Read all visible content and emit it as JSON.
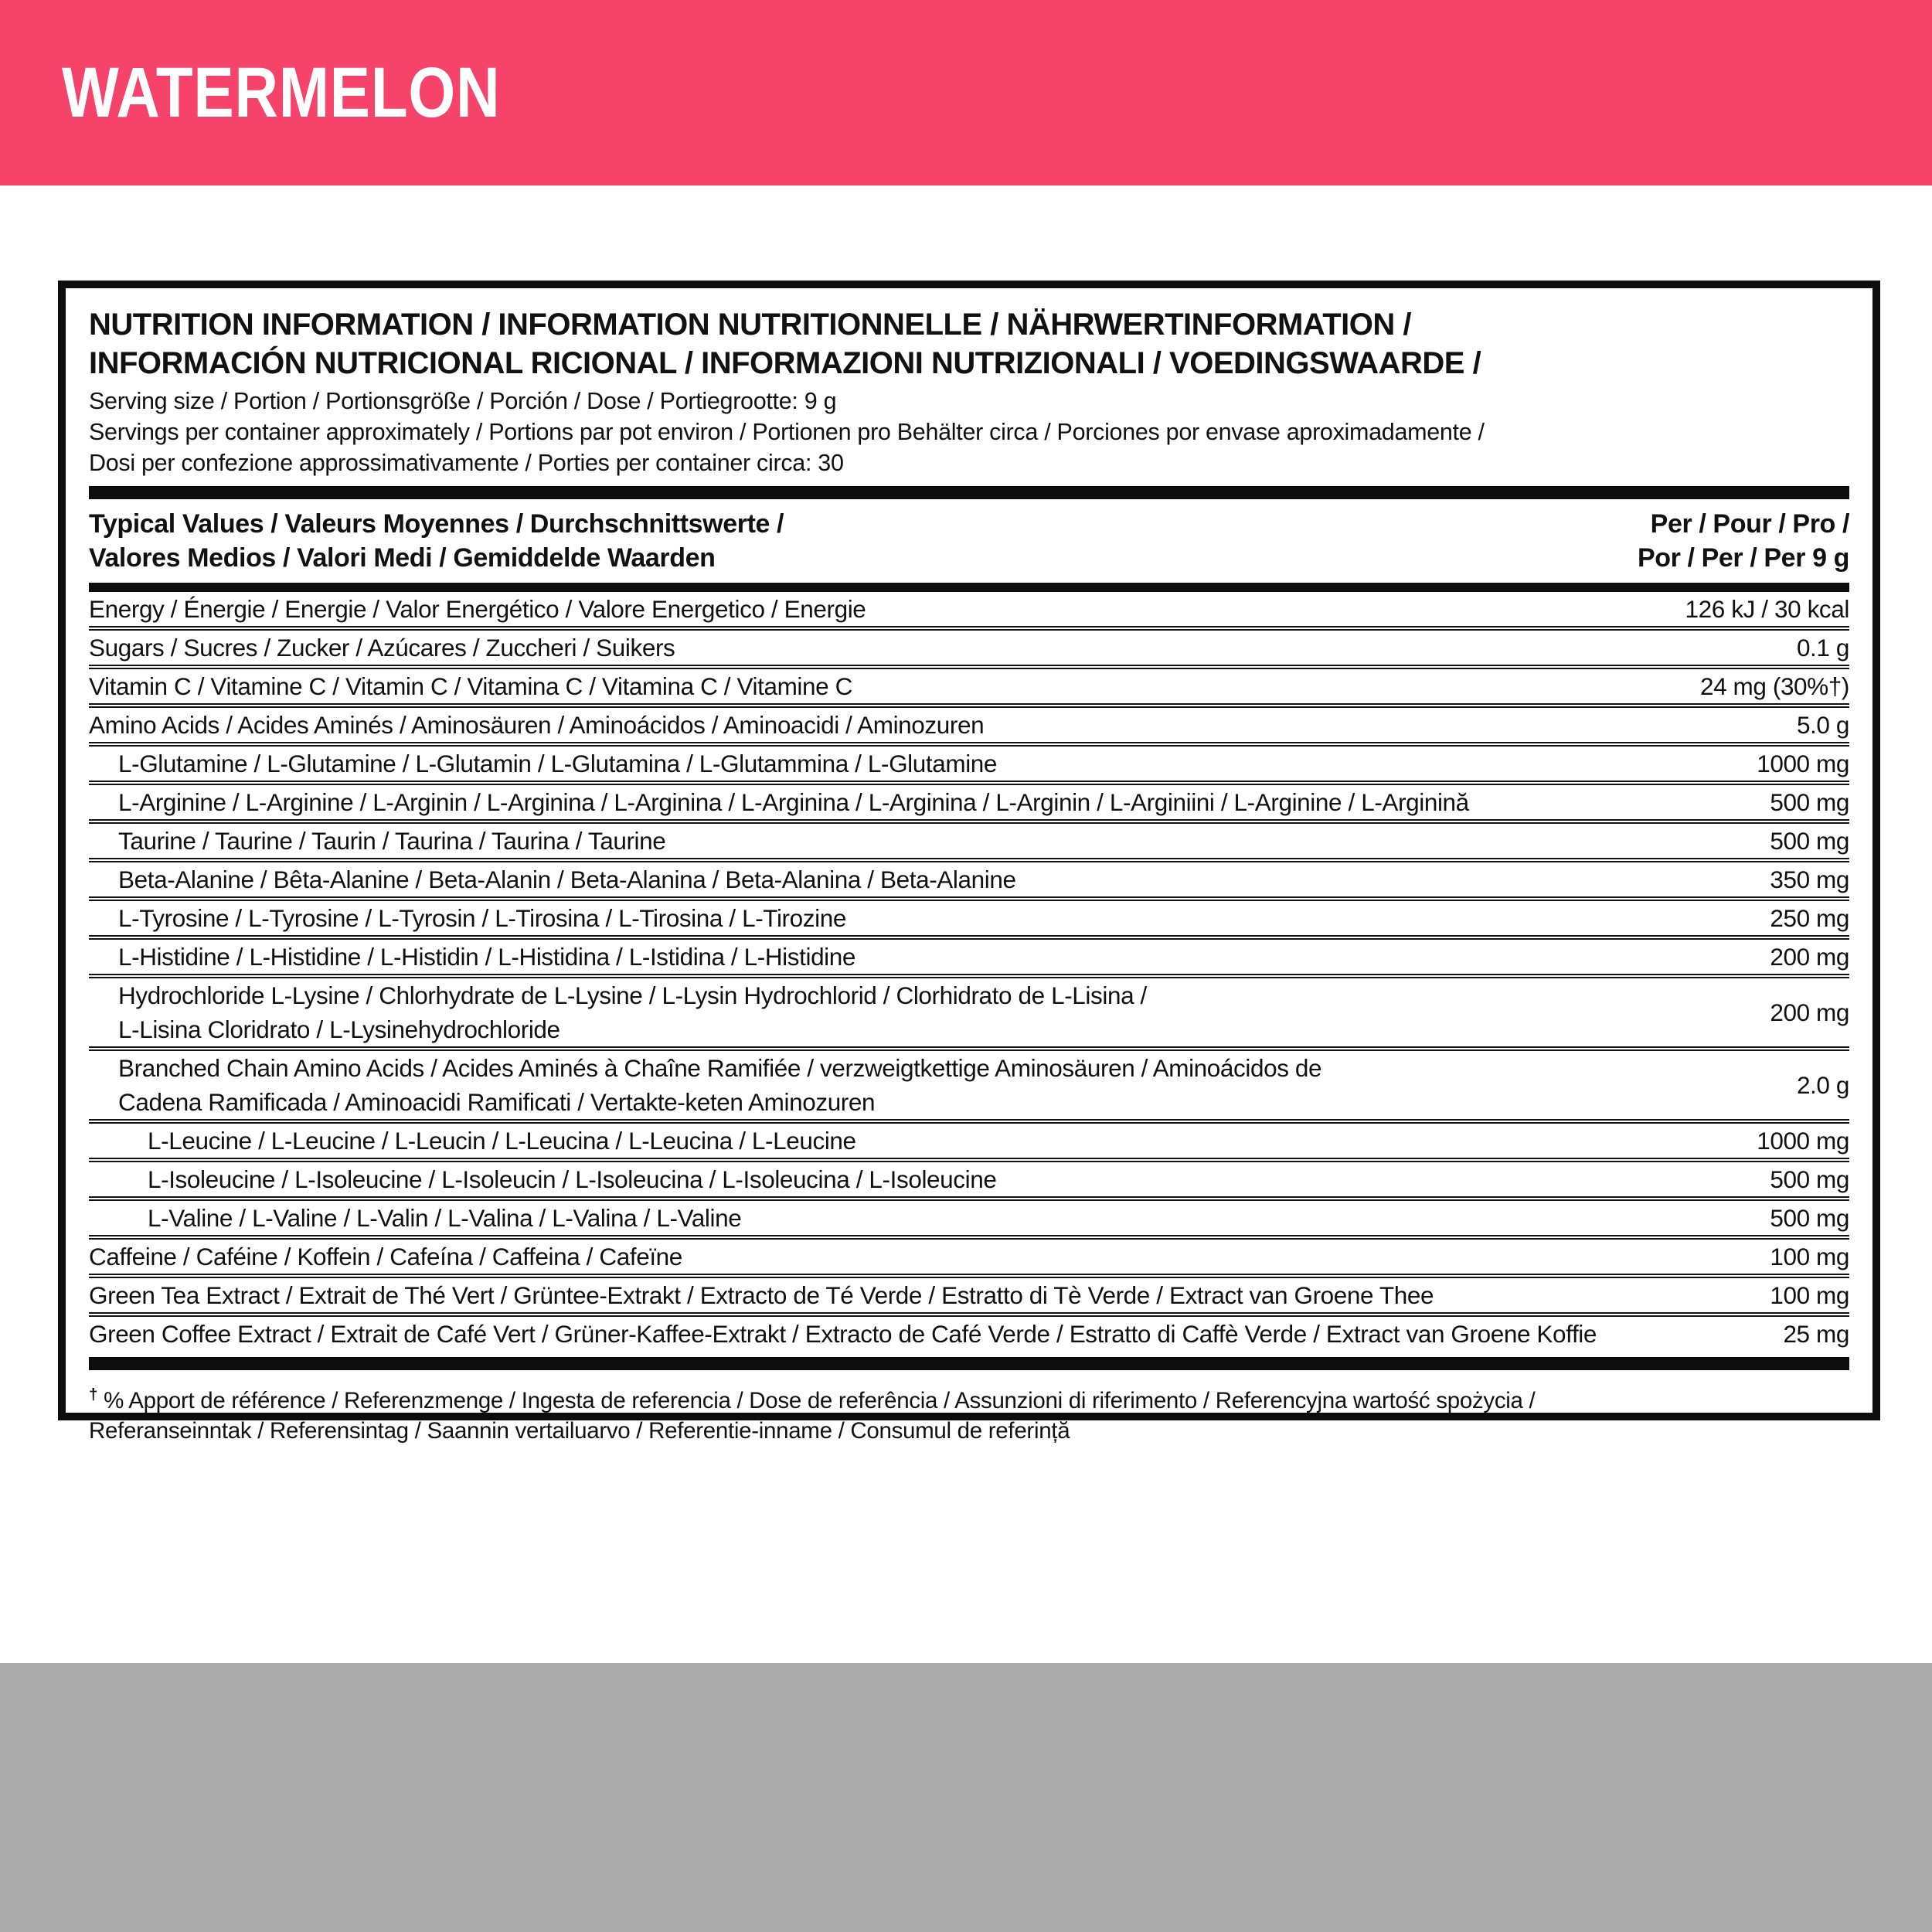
{
  "colors": {
    "banner_pink": "#F5436A",
    "footer_gray": "#ABABAB",
    "ink": "#111111"
  },
  "banner": {
    "flavor": "WATERMELON"
  },
  "panel": {
    "title_line1": "NUTRITION INFORMATION / INFORMATION NUTRITIONNELLE / NÄHRWERTINFORMATION /",
    "title_line2": "INFORMACIÓN NUTRICIONAL RICIONAL / INFORMAZIONI NUTRIZIONALI / VOEDINGSWAARDE /",
    "serving_lines": [
      "Serving size / Portion / Portionsgröße / Porción / Dose / Portiegrootte: 9 g",
      "Servings per container approximately / Portions par pot environ / Portionen pro Behälter circa / Porciones por envase aproximadamente /",
      "Dosi per confezione approssimativamente / Porties per container circa: 30"
    ],
    "columns": {
      "typical_line1": "Typical Values / Valeurs Moyennes / Durchschnittswerte /",
      "typical_line2": "Valores Medios / Valori Medi / Gemiddelde Waarden",
      "per_line1": "Per / Pour / Pro /",
      "per_line2": "Por / Per / Per 9 g"
    },
    "rows": [
      {
        "indent": 0,
        "label": "Energy / Énergie / Energie / Valor Energético / Valore Energetico / Energie",
        "value": "126 kJ / 30 kcal"
      },
      {
        "indent": 0,
        "label": "Sugars / Sucres / Zucker / Azúcares / Zuccheri / Suikers",
        "value": "0.1 g"
      },
      {
        "indent": 0,
        "label": "Vitamin C / Vitamine C / Vitamin C / Vitamina C / Vitamina C / Vitamine C",
        "value": "24 mg (30%†)"
      },
      {
        "indent": 0,
        "label": "Amino Acids / Acides Aminés / Aminosäuren / Aminoácidos / Aminoacidi / Aminozuren",
        "value": "5.0 g"
      },
      {
        "indent": 1,
        "label": "L-Glutamine / L-Glutamine / L-Glutamin / L-Glutamina / L-Glutammina / L-Glutamine",
        "value": "1000 mg"
      },
      {
        "indent": 1,
        "label": "L-Arginine / L-Arginine / L-Arginin / L-Arginina / L-Arginina / L-Arginina / L-Arginina / L-Arginin / L-Arginiini / L-Arginine / L-Arginină",
        "value": "500 mg"
      },
      {
        "indent": 1,
        "label": "Taurine / Taurine / Taurin / Taurina / Taurina / Taurine",
        "value": "500 mg"
      },
      {
        "indent": 1,
        "label": "Beta-Alanine / Bêta-Alanine / Beta-Alanin / Beta-Alanina / Beta-Alanina / Beta-Alanine",
        "value": "350 mg"
      },
      {
        "indent": 1,
        "label": "L-Tyrosine / L-Tyrosine / L-Tyrosin / L-Tirosina / L-Tirosina / L-Tirozine",
        "value": "250 mg"
      },
      {
        "indent": 1,
        "label": "L-Histidine / L-Histidine / L-Histidin / L-Histidina / L-Istidina / L-Histidine",
        "value": "200 mg"
      },
      {
        "indent": 1,
        "label": "Hydrochloride L-Lysine / Chlorhydrate de L-Lysine / L-Lysin Hydrochlorid / Clorhidrato de L-Lisina /",
        "label2": "L-Lisina Cloridrato / L-Lysinehydrochloride",
        "value": "200 mg"
      },
      {
        "indent": 1,
        "label": "Branched Chain Amino Acids / Acides Aminés à Chaîne Ramifiée / verzweigtkettige Aminosäuren / Aminoácidos de",
        "label2": "Cadena Ramificada / Aminoacidi Ramificati / Vertakte-keten Aminozuren",
        "value": "2.0 g"
      },
      {
        "indent": 2,
        "label": "L-Leucine / L-Leucine / L-Leucin / L-Leucina / L-Leucina / L-Leucine",
        "value": "1000 mg"
      },
      {
        "indent": 2,
        "label": "L-Isoleucine / L-Isoleucine / L-Isoleucin / L-Isoleucina / L-Isoleucina / L-Isoleucine",
        "value": "500 mg"
      },
      {
        "indent": 2,
        "label": "L-Valine / L-Valine / L-Valin / L-Valina / L-Valina / L-Valine",
        "value": "500 mg"
      },
      {
        "indent": 0,
        "label": "Caffeine / Caféine / Koffein / Cafeína / Caffeina / Cafeïne",
        "value": "100 mg"
      },
      {
        "indent": 0,
        "label": "Green Tea Extract / Extrait de Thé Vert / Grüntee-Extrakt / Extracto de Té Verde / Estratto di Tè Verde / Extract van Groene Thee",
        "value": "100 mg"
      },
      {
        "indent": 0,
        "label": "Green Coffee Extract / Extrait de Café Vert / Grüner-Kaffee-Extrakt / Extracto de Café Verde / Estratto di Caffè Verde / Extract van Groene Koffie",
        "value": "25 mg"
      }
    ],
    "footnote": {
      "dagger": "†",
      "line1": "% Apport de référence / Referenzmenge / Ingesta de referencia / Dose de referência / Assunzioni di riferimento / Referencyjna wartość spożycia /",
      "line2": "Referanseinntak / Referensintag / Saannin vertailuarvo / Referentie-inname / Consumul de referință"
    }
  }
}
